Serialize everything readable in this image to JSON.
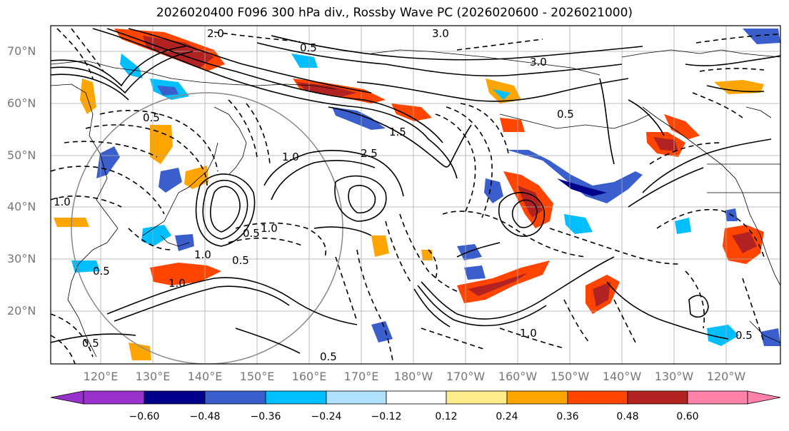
{
  "title": "2026020400 F096 300 hPa div., Rossby Wave PC (2026020600 - 2026021000)",
  "lat_labels": [
    "70°N",
    "60°N",
    "50°N",
    "40°N",
    "30°N",
    "20°N"
  ],
  "lon_labels": [
    "120°E",
    "130°E",
    "140°E",
    "150°E",
    "160°E",
    "170°E",
    "180°W",
    "170°W",
    "160°W",
    "150°W",
    "140°W",
    "130°W",
    "120°W"
  ],
  "contour_labels": [
    "3.0",
    "2.0",
    "0.5",
    "3.0",
    "0.5",
    "1.0",
    "1.5",
    "2.5",
    "0.5",
    "1.0",
    "1.0",
    "0.5",
    "1.0",
    "0.5",
    "1.0",
    "0.5",
    "1.0",
    "0.5",
    "0.5",
    "0.5"
  ],
  "colorbar": {
    "colors": [
      "#9932cc",
      "#00008b",
      "#3a5fcd",
      "#00bfff",
      "#b0e2ff",
      "#ffffff",
      "#ffec8b",
      "#ffa500",
      "#ff4500",
      "#b22222",
      "#ff82ab"
    ],
    "ticks": [
      "−0.60",
      "−0.48",
      "−0.36",
      "−0.24",
      "−0.12",
      "0.12",
      "0.24",
      "0.36",
      "0.48",
      "0.60"
    ]
  }
}
